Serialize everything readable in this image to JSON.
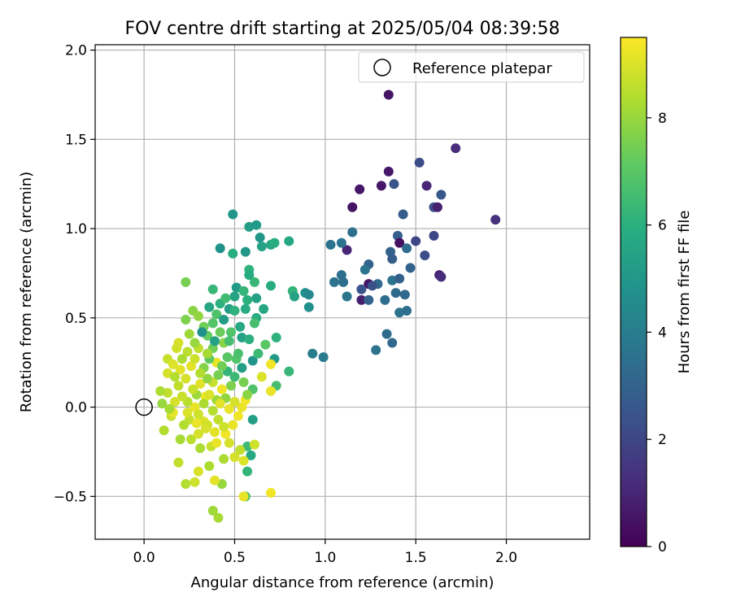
{
  "chart_data": {
    "type": "scatter",
    "title": "FOV centre drift starting at 2025/05/04 08:39:58",
    "xlabel": "Angular distance from reference (arcmin)",
    "ylabel": "Rotation from reference (arcmin)",
    "xlim": [
      -0.27,
      2.46
    ],
    "ylim": [
      -0.74,
      2.03
    ],
    "x_ticks": [
      0.0,
      0.5,
      1.0,
      1.5,
      2.0
    ],
    "x_tick_labels": [
      "0.0",
      "0.5",
      "1.0",
      "1.5",
      "2.0"
    ],
    "y_ticks": [
      -0.5,
      0.0,
      0.5,
      1.0,
      1.5,
      2.0
    ],
    "y_tick_labels": [
      "−0.5",
      "0.0",
      "0.5",
      "1.0",
      "1.5",
      "2.0"
    ],
    "grid": true,
    "legend": {
      "position": "top-right",
      "entries": [
        "Reference platepar"
      ]
    },
    "reference_point": {
      "x": 0.0,
      "y": 0.0,
      "label": "Reference platepar"
    },
    "colorbar": {
      "label": "Hours from first FF file",
      "min": 0,
      "max": 9.5,
      "ticks": [
        0,
        2,
        4,
        6,
        8
      ],
      "tick_labels": [
        "0",
        "2",
        "4",
        "6",
        "8"
      ],
      "colormap": "viridis"
    },
    "points": [
      {
        "x": 1.35,
        "y": 1.75,
        "h": 0.5
      },
      {
        "x": 1.72,
        "y": 1.45,
        "h": 1.2
      },
      {
        "x": 1.94,
        "y": 1.05,
        "h": 1.3
      },
      {
        "x": 1.52,
        "y": 1.37,
        "h": 2.2
      },
      {
        "x": 1.35,
        "y": 1.32,
        "h": 0.6
      },
      {
        "x": 1.31,
        "y": 1.24,
        "h": 0.6
      },
      {
        "x": 1.38,
        "y": 1.25,
        "h": 2.4
      },
      {
        "x": 1.56,
        "y": 1.24,
        "h": 1.0
      },
      {
        "x": 1.64,
        "y": 1.19,
        "h": 2.6
      },
      {
        "x": 1.6,
        "y": 1.12,
        "h": 2.3
      },
      {
        "x": 1.62,
        "y": 1.12,
        "h": 0.8
      },
      {
        "x": 1.43,
        "y": 1.08,
        "h": 2.8
      },
      {
        "x": 1.19,
        "y": 1.22,
        "h": 0.6
      },
      {
        "x": 1.15,
        "y": 1.12,
        "h": 0.5
      },
      {
        "x": 1.4,
        "y": 0.96,
        "h": 2.8
      },
      {
        "x": 1.41,
        "y": 0.92,
        "h": 0.4
      },
      {
        "x": 1.5,
        "y": 0.93,
        "h": 2.0
      },
      {
        "x": 1.6,
        "y": 0.96,
        "h": 2.0
      },
      {
        "x": 1.45,
        "y": 0.89,
        "h": 3.3
      },
      {
        "x": 1.36,
        "y": 0.87,
        "h": 3.0
      },
      {
        "x": 1.55,
        "y": 0.85,
        "h": 2.2
      },
      {
        "x": 1.63,
        "y": 0.74,
        "h": 0.9
      },
      {
        "x": 1.64,
        "y": 0.73,
        "h": 1.2
      },
      {
        "x": 1.37,
        "y": 0.83,
        "h": 2.8
      },
      {
        "x": 1.15,
        "y": 0.98,
        "h": 3.5
      },
      {
        "x": 1.12,
        "y": 0.88,
        "h": 1.0
      },
      {
        "x": 1.09,
        "y": 0.92,
        "h": 3.6
      },
      {
        "x": 1.03,
        "y": 0.91,
        "h": 3.6
      },
      {
        "x": 1.24,
        "y": 0.8,
        "h": 3.0
      },
      {
        "x": 1.22,
        "y": 0.77,
        "h": 3.7
      },
      {
        "x": 1.47,
        "y": 0.78,
        "h": 3.0
      },
      {
        "x": 1.37,
        "y": 0.71,
        "h": 3.6
      },
      {
        "x": 1.41,
        "y": 0.72,
        "h": 2.9
      },
      {
        "x": 1.29,
        "y": 0.69,
        "h": 3.2
      },
      {
        "x": 1.24,
        "y": 0.69,
        "h": 0.5
      },
      {
        "x": 1.26,
        "y": 0.68,
        "h": 2.3
      },
      {
        "x": 1.09,
        "y": 0.74,
        "h": 3.5
      },
      {
        "x": 1.1,
        "y": 0.7,
        "h": 3.4
      },
      {
        "x": 1.05,
        "y": 0.7,
        "h": 3.6
      },
      {
        "x": 1.2,
        "y": 0.66,
        "h": 2.5
      },
      {
        "x": 1.2,
        "y": 0.6,
        "h": 0.8
      },
      {
        "x": 1.24,
        "y": 0.6,
        "h": 3.0
      },
      {
        "x": 1.33,
        "y": 0.6,
        "h": 3.4
      },
      {
        "x": 1.39,
        "y": 0.64,
        "h": 3.3
      },
      {
        "x": 1.44,
        "y": 0.63,
        "h": 3.2
      },
      {
        "x": 1.12,
        "y": 0.62,
        "h": 3.7
      },
      {
        "x": 1.41,
        "y": 0.53,
        "h": 3.6
      },
      {
        "x": 1.45,
        "y": 0.54,
        "h": 3.4
      },
      {
        "x": 1.34,
        "y": 0.41,
        "h": 3.3
      },
      {
        "x": 1.37,
        "y": 0.36,
        "h": 3.2
      },
      {
        "x": 1.28,
        "y": 0.32,
        "h": 3.6
      },
      {
        "x": 0.93,
        "y": 0.3,
        "h": 4.0
      },
      {
        "x": 0.99,
        "y": 0.28,
        "h": 3.9
      },
      {
        "x": 0.49,
        "y": 1.08,
        "h": 5.0
      },
      {
        "x": 0.58,
        "y": 1.01,
        "h": 5.2
      },
      {
        "x": 0.62,
        "y": 1.02,
        "h": 5.1
      },
      {
        "x": 0.64,
        "y": 0.95,
        "h": 5.0
      },
      {
        "x": 0.65,
        "y": 0.9,
        "h": 5.4
      },
      {
        "x": 0.7,
        "y": 0.91,
        "h": 5.6
      },
      {
        "x": 0.72,
        "y": 0.92,
        "h": 5.9
      },
      {
        "x": 0.8,
        "y": 0.93,
        "h": 5.6
      },
      {
        "x": 0.42,
        "y": 0.89,
        "h": 4.8
      },
      {
        "x": 0.49,
        "y": 0.86,
        "h": 5.9
      },
      {
        "x": 0.56,
        "y": 0.87,
        "h": 5.0
      },
      {
        "x": 0.58,
        "y": 0.77,
        "h": 6.1
      },
      {
        "x": 0.58,
        "y": 0.74,
        "h": 5.8
      },
      {
        "x": 0.61,
        "y": 0.7,
        "h": 6.3
      },
      {
        "x": 0.7,
        "y": 0.68,
        "h": 5.8
      },
      {
        "x": 0.82,
        "y": 0.65,
        "h": 6.2
      },
      {
        "x": 0.83,
        "y": 0.62,
        "h": 5.4
      },
      {
        "x": 0.89,
        "y": 0.64,
        "h": 4.7
      },
      {
        "x": 0.91,
        "y": 0.63,
        "h": 4.4
      },
      {
        "x": 0.91,
        "y": 0.56,
        "h": 4.7
      },
      {
        "x": 0.51,
        "y": 0.67,
        "h": 5.1
      },
      {
        "x": 0.55,
        "y": 0.65,
        "h": 6.2
      },
      {
        "x": 0.5,
        "y": 0.62,
        "h": 5.5
      },
      {
        "x": 0.57,
        "y": 0.6,
        "h": 6.0
      },
      {
        "x": 0.62,
        "y": 0.61,
        "h": 5.4
      },
      {
        "x": 0.56,
        "y": 0.55,
        "h": 5.8
      },
      {
        "x": 0.66,
        "y": 0.55,
        "h": 5.6
      },
      {
        "x": 0.38,
        "y": 0.66,
        "h": 6.3
      },
      {
        "x": 0.23,
        "y": 0.7,
        "h": 7.5
      },
      {
        "x": 0.42,
        "y": 0.58,
        "h": 6.0
      },
      {
        "x": 0.47,
        "y": 0.55,
        "h": 5.2
      },
      {
        "x": 0.5,
        "y": 0.54,
        "h": 6.1
      },
      {
        "x": 0.62,
        "y": 0.5,
        "h": 5.9
      },
      {
        "x": 0.61,
        "y": 0.47,
        "h": 6.6
      },
      {
        "x": 0.73,
        "y": 0.39,
        "h": 6.1
      },
      {
        "x": 0.67,
        "y": 0.35,
        "h": 7.0
      },
      {
        "x": 0.72,
        "y": 0.27,
        "h": 5.1
      },
      {
        "x": 0.8,
        "y": 0.2,
        "h": 6.3
      },
      {
        "x": 0.73,
        "y": 0.12,
        "h": 6.6
      },
      {
        "x": 0.7,
        "y": 0.24,
        "h": 9.3
      },
      {
        "x": 0.65,
        "y": 0.17,
        "h": 9.0
      },
      {
        "x": 0.7,
        "y": 0.09,
        "h": 9.2
      },
      {
        "x": 0.6,
        "y": 0.26,
        "h": 4.9
      },
      {
        "x": 0.63,
        "y": 0.3,
        "h": 6.4
      },
      {
        "x": 0.48,
        "y": 0.42,
        "h": 6.8
      },
      {
        "x": 0.53,
        "y": 0.45,
        "h": 5.7
      },
      {
        "x": 0.54,
        "y": 0.39,
        "h": 5.4
      },
      {
        "x": 0.58,
        "y": 0.38,
        "h": 6.0
      },
      {
        "x": 0.51,
        "y": 0.27,
        "h": 6.9
      },
      {
        "x": 0.54,
        "y": 0.22,
        "h": 5.3
      },
      {
        "x": 0.46,
        "y": 0.2,
        "h": 6.2
      },
      {
        "x": 0.5,
        "y": 0.17,
        "h": 6.4
      },
      {
        "x": 0.6,
        "y": 0.1,
        "h": 6.8
      },
      {
        "x": 0.6,
        "y": -0.07,
        "h": 5.3
      },
      {
        "x": 0.57,
        "y": -0.22,
        "h": 6.4
      },
      {
        "x": 0.59,
        "y": -0.27,
        "h": 5.7
      },
      {
        "x": 0.57,
        "y": -0.36,
        "h": 6.2
      },
      {
        "x": 0.56,
        "y": -0.5,
        "h": 6.6
      },
      {
        "x": 0.55,
        "y": -0.5,
        "h": 9.2
      },
      {
        "x": 0.7,
        "y": -0.48,
        "h": 9.3
      },
      {
        "x": 0.61,
        "y": -0.21,
        "h": 8.8
      },
      {
        "x": 0.53,
        "y": -0.24,
        "h": 8.6
      },
      {
        "x": 0.55,
        "y": -0.3,
        "h": 9.0
      },
      {
        "x": 0.5,
        "y": -0.28,
        "h": 8.9
      },
      {
        "x": 0.44,
        "y": -0.29,
        "h": 8.3
      },
      {
        "x": 0.43,
        "y": -0.43,
        "h": 8.0
      },
      {
        "x": 0.38,
        "y": -0.58,
        "h": 8.1
      },
      {
        "x": 0.41,
        "y": -0.62,
        "h": 8.2
      },
      {
        "x": 0.28,
        "y": -0.42,
        "h": 8.8
      },
      {
        "x": 0.23,
        "y": -0.43,
        "h": 8.4
      },
      {
        "x": 0.3,
        "y": -0.36,
        "h": 9.0
      },
      {
        "x": 0.36,
        "y": -0.33,
        "h": 8.3
      },
      {
        "x": 0.39,
        "y": -0.41,
        "h": 9.1
      },
      {
        "x": 0.19,
        "y": -0.31,
        "h": 8.6
      },
      {
        "x": 0.31,
        "y": -0.23,
        "h": 8.3
      },
      {
        "x": 0.37,
        "y": -0.22,
        "h": 8.7
      },
      {
        "x": 0.4,
        "y": -0.2,
        "h": 9.2
      },
      {
        "x": 0.47,
        "y": -0.2,
        "h": 8.9
      },
      {
        "x": 0.45,
        "y": -0.15,
        "h": 9.3
      },
      {
        "x": 0.49,
        "y": -0.1,
        "h": 9.2
      },
      {
        "x": 0.52,
        "y": -0.05,
        "h": 9.3
      },
      {
        "x": 0.54,
        "y": 0.0,
        "h": 9.2
      },
      {
        "x": 0.56,
        "y": 0.04,
        "h": 9.3
      },
      {
        "x": 0.43,
        "y": 0.1,
        "h": 9.3
      },
      {
        "x": 0.4,
        "y": 0.25,
        "h": 9.2
      },
      {
        "x": 0.38,
        "y": 0.14,
        "h": 8.7
      },
      {
        "x": 0.34,
        "y": 0.06,
        "h": 9.3
      },
      {
        "x": 0.31,
        "y": 0.13,
        "h": 9.1
      },
      {
        "x": 0.28,
        "y": 0.0,
        "h": 9.2
      },
      {
        "x": 0.33,
        "y": -0.08,
        "h": 9.0
      },
      {
        "x": 0.3,
        "y": -0.04,
        "h": 8.8
      },
      {
        "x": 0.25,
        "y": -0.07,
        "h": 8.6
      },
      {
        "x": 0.22,
        "y": -0.1,
        "h": 8.4
      },
      {
        "x": 0.2,
        "y": -0.18,
        "h": 8.2
      },
      {
        "x": 0.26,
        "y": -0.18,
        "h": 8.5
      },
      {
        "x": 0.3,
        "y": -0.15,
        "h": 8.9
      },
      {
        "x": 0.11,
        "y": -0.13,
        "h": 8.4
      },
      {
        "x": 0.15,
        "y": -0.05,
        "h": 8.7
      },
      {
        "x": 0.16,
        "y": -0.03,
        "h": 9.2
      },
      {
        "x": 0.1,
        "y": 0.02,
        "h": 8.0
      },
      {
        "x": 0.13,
        "y": 0.08,
        "h": 8.6
      },
      {
        "x": 0.09,
        "y": 0.09,
        "h": 8.3
      },
      {
        "x": 0.13,
        "y": 0.19,
        "h": 8.9
      },
      {
        "x": 0.13,
        "y": 0.27,
        "h": 8.7
      },
      {
        "x": 0.16,
        "y": 0.24,
        "h": 9.0
      },
      {
        "x": 0.18,
        "y": 0.33,
        "h": 8.8
      },
      {
        "x": 0.19,
        "y": 0.36,
        "h": 8.9
      },
      {
        "x": 0.2,
        "y": 0.21,
        "h": 9.1
      },
      {
        "x": 0.23,
        "y": 0.16,
        "h": 8.9
      },
      {
        "x": 0.26,
        "y": 0.23,
        "h": 9.1
      },
      {
        "x": 0.28,
        "y": 0.27,
        "h": 8.8
      },
      {
        "x": 0.24,
        "y": 0.31,
        "h": 8.5
      },
      {
        "x": 0.3,
        "y": 0.33,
        "h": 8.6
      },
      {
        "x": 0.28,
        "y": 0.36,
        "h": 8.0
      },
      {
        "x": 0.25,
        "y": 0.41,
        "h": 8.1
      },
      {
        "x": 0.23,
        "y": 0.49,
        "h": 7.6
      },
      {
        "x": 0.27,
        "y": 0.54,
        "h": 7.8
      },
      {
        "x": 0.3,
        "y": 0.51,
        "h": 7.9
      },
      {
        "x": 0.33,
        "y": 0.45,
        "h": 7.4
      },
      {
        "x": 0.35,
        "y": 0.4,
        "h": 7.2
      },
      {
        "x": 0.38,
        "y": 0.47,
        "h": 6.9
      },
      {
        "x": 0.4,
        "y": 0.52,
        "h": 6.8
      },
      {
        "x": 0.42,
        "y": 0.42,
        "h": 7.3
      },
      {
        "x": 0.44,
        "y": 0.36,
        "h": 7.8
      },
      {
        "x": 0.38,
        "y": 0.33,
        "h": 7.4
      },
      {
        "x": 0.36,
        "y": 0.27,
        "h": 7.1
      },
      {
        "x": 0.33,
        "y": 0.22,
        "h": 7.7
      },
      {
        "x": 0.35,
        "y": 0.16,
        "h": 7.9
      },
      {
        "x": 0.41,
        "y": 0.18,
        "h": 7.5
      },
      {
        "x": 0.46,
        "y": 0.28,
        "h": 7.0
      },
      {
        "x": 0.48,
        "y": 0.12,
        "h": 7.6
      },
      {
        "x": 0.45,
        "y": 0.05,
        "h": 7.9
      },
      {
        "x": 0.4,
        "y": 0.04,
        "h": 8.1
      },
      {
        "x": 0.38,
        "y": -0.02,
        "h": 8.4
      },
      {
        "x": 0.41,
        "y": -0.07,
        "h": 8.6
      },
      {
        "x": 0.35,
        "y": -0.1,
        "h": 8.8
      },
      {
        "x": 0.33,
        "y": 0.02,
        "h": 8.3
      },
      {
        "x": 0.29,
        "y": 0.07,
        "h": 8.1
      },
      {
        "x": 0.24,
        "y": 0.03,
        "h": 8.5
      },
      {
        "x": 0.21,
        "y": 0.06,
        "h": 8.7
      },
      {
        "x": 0.19,
        "y": 0.12,
        "h": 8.6
      },
      {
        "x": 0.17,
        "y": 0.03,
        "h": 8.9
      },
      {
        "x": 0.24,
        "y": -0.03,
        "h": 9.0
      },
      {
        "x": 0.36,
        "y": 0.07,
        "h": 9.0
      },
      {
        "x": 0.42,
        "y": 0.02,
        "h": 9.1
      },
      {
        "x": 0.47,
        "y": -0.01,
        "h": 9.2
      },
      {
        "x": 0.5,
        "y": 0.03,
        "h": 8.9
      },
      {
        "x": 0.44,
        "y": -0.11,
        "h": 8.8
      },
      {
        "x": 0.39,
        "y": -0.14,
        "h": 9.1
      },
      {
        "x": 0.34,
        "y": -0.12,
        "h": 8.9
      },
      {
        "x": 0.29,
        "y": -0.09,
        "h": 9.2
      },
      {
        "x": 0.27,
        "y": 0.1,
        "h": 8.7
      },
      {
        "x": 0.31,
        "y": 0.19,
        "h": 8.4
      },
      {
        "x": 0.35,
        "y": 0.3,
        "h": 8.2
      },
      {
        "x": 0.21,
        "y": 0.27,
        "h": 8.3
      },
      {
        "x": 0.17,
        "y": 0.17,
        "h": 8.4
      },
      {
        "x": 0.14,
        "y": -0.01,
        "h": 8.2
      },
      {
        "x": 0.43,
        "y": 0.23,
        "h": 7.4
      },
      {
        "x": 0.47,
        "y": 0.37,
        "h": 6.6
      },
      {
        "x": 0.52,
        "y": 0.3,
        "h": 6.7
      },
      {
        "x": 0.55,
        "y": 0.14,
        "h": 7.5
      },
      {
        "x": 0.57,
        "y": 0.07,
        "h": 7.8
      },
      {
        "x": 0.39,
        "y": 0.37,
        "h": 5.4
      },
      {
        "x": 0.32,
        "y": 0.42,
        "h": 4.8
      },
      {
        "x": 0.36,
        "y": 0.56,
        "h": 5.6
      },
      {
        "x": 0.45,
        "y": 0.61,
        "h": 6.5
      },
      {
        "x": 0.44,
        "y": 0.49,
        "h": 5.2
      }
    ]
  }
}
